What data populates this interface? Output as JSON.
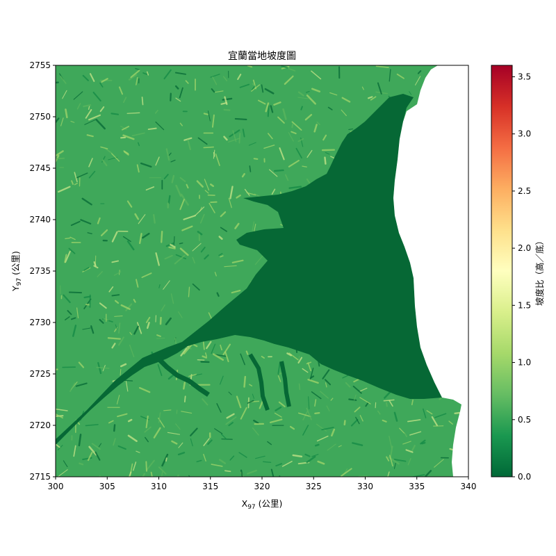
{
  "chart_data": {
    "type": "heatmap",
    "title": "宜蘭當地坡度圖",
    "xlabel_main": "X",
    "xlabel_sub": "97",
    "xlabel_unit": " (公里)",
    "ylabel_main": "Y",
    "ylabel_sub": "97",
    "ylabel_unit": " (公里)",
    "xlim": [
      300,
      340
    ],
    "ylim": [
      2715,
      2755
    ],
    "x_ticks": [
      "300",
      "305",
      "310",
      "315",
      "320",
      "325",
      "330",
      "335",
      "340"
    ],
    "y_ticks": [
      "2715",
      "2720",
      "2725",
      "2730",
      "2735",
      "2740",
      "2745",
      "2750",
      "2755"
    ],
    "colormap": "RdYlGn_r",
    "colorbar": {
      "label": "坡度比（高／底）",
      "range": [
        0.0,
        3.6
      ],
      "ticks": [
        "0.0",
        "0.5",
        "1.0",
        "1.5",
        "2.0",
        "2.5",
        "3.0",
        "3.5"
      ],
      "colors": [
        "#006837",
        "#1a9850",
        "#66bd63",
        "#a6d96a",
        "#d9ef8b",
        "#ffffbf",
        "#fee08b",
        "#fdae61",
        "#f46d43",
        "#d73027",
        "#a50026"
      ]
    },
    "regions": {
      "plain_slope": 0.0,
      "mountain_slope_typical": [
        0.3,
        1.2
      ],
      "sea": "no data"
    },
    "palette": {
      "plain": "#066835",
      "mountain_base": "#3fa85a",
      "mountain_light": "#a3d56b",
      "mountain_dark": "#148a45",
      "sea": "#ffffff"
    }
  }
}
